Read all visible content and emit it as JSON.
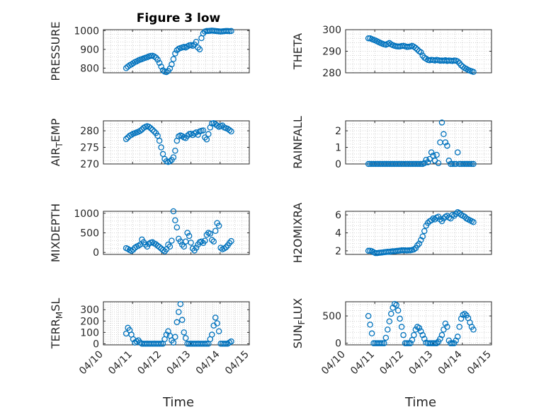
{
  "title": "Figure 3 low",
  "xlabel": "Time",
  "x_tick_labels": [
    "04/10",
    "04/11",
    "04/12",
    "04/13",
    "04/14",
    "04/15"
  ],
  "marker_color": "#0072BD",
  "chart_data": [
    {
      "type": "scatter",
      "title": "Figure 3 low",
      "ylabel": "PRESSURE",
      "ylim": [
        775,
        1005
      ],
      "yticks": [
        800,
        900,
        1000
      ],
      "grid": true,
      "x": [
        0.78,
        0.84,
        0.9,
        0.96,
        1.02,
        1.08,
        1.14,
        1.2,
        1.26,
        1.32,
        1.38,
        1.44,
        1.5,
        1.56,
        1.62,
        1.68,
        1.74,
        1.8,
        1.86,
        1.92,
        1.98,
        2.04,
        2.1,
        2.16,
        2.22,
        2.28,
        2.34,
        2.4,
        2.46,
        2.52,
        2.58,
        2.64,
        2.7,
        2.76,
        2.82,
        2.88,
        2.94,
        3.0,
        3.06,
        3.12,
        3.18,
        3.24,
        3.3,
        3.36,
        3.42,
        3.48,
        3.54,
        3.6,
        3.66,
        3.72,
        3.78,
        3.84,
        3.9,
        3.96,
        4.02,
        4.08,
        4.14,
        4.2,
        4.26,
        4.32,
        4.38
      ],
      "y": [
        800,
        808,
        815,
        820,
        826,
        832,
        836,
        841,
        845,
        848,
        852,
        855,
        858,
        862,
        865,
        866,
        862,
        856,
        845,
        828,
        808,
        788,
        781,
        779,
        785,
        798,
        820,
        848,
        878,
        895,
        903,
        907,
        910,
        913,
        910,
        916,
        921,
        923,
        919,
        926,
        940,
        910,
        900,
        960,
        985,
        995,
        998,
        998,
        999,
        1000,
        999,
        998,
        997,
        996,
        995,
        996,
        997,
        998,
        998,
        997,
        998
      ]
    },
    {
      "type": "scatter",
      "ylabel": "THETA",
      "ylim": [
        280,
        300
      ],
      "yticks": [
        280,
        290,
        300
      ],
      "grid": true,
      "x": [
        0.78,
        0.84,
        0.9,
        0.96,
        1.02,
        1.08,
        1.14,
        1.2,
        1.26,
        1.32,
        1.38,
        1.44,
        1.5,
        1.56,
        1.62,
        1.68,
        1.74,
        1.8,
        1.86,
        1.92,
        1.98,
        2.04,
        2.1,
        2.16,
        2.22,
        2.28,
        2.34,
        2.4,
        2.46,
        2.52,
        2.58,
        2.64,
        2.7,
        2.76,
        2.82,
        2.88,
        2.94,
        3.0,
        3.06,
        3.12,
        3.18,
        3.24,
        3.3,
        3.36,
        3.42,
        3.48,
        3.54,
        3.6,
        3.66,
        3.72,
        3.78,
        3.84,
        3.9,
        3.96,
        4.02,
        4.08,
        4.14,
        4.2,
        4.26,
        4.32,
        4.38
      ],
      "y": [
        296,
        296,
        295.6,
        295.3,
        295,
        294.6,
        294.2,
        293.8,
        293.5,
        293.2,
        293,
        293.4,
        293.8,
        293.2,
        292.8,
        292.5,
        292.3,
        292.2,
        292.2,
        292.4,
        292.5,
        292.3,
        292,
        292.1,
        292.2,
        292.5,
        292.1,
        291.5,
        290.8,
        290,
        289.5,
        288,
        287,
        286.5,
        286,
        285.8,
        286,
        285.9,
        285.7,
        286,
        285.8,
        285.6,
        285.7,
        285.6,
        285.8,
        285.5,
        285.7,
        285.6,
        285.5,
        285.7,
        285.6,
        285.3,
        284.5,
        283.5,
        282.8,
        282.2,
        281.8,
        281.3,
        281,
        280.7,
        280.4
      ]
    },
    {
      "type": "scatter",
      "ylabel": "AIR_TEMP",
      "ylim": [
        270,
        283
      ],
      "yticks": [
        270,
        275,
        280
      ],
      "grid": true,
      "x": [
        0.78,
        0.84,
        0.9,
        0.96,
        1.02,
        1.08,
        1.14,
        1.2,
        1.26,
        1.32,
        1.38,
        1.44,
        1.5,
        1.56,
        1.62,
        1.68,
        1.74,
        1.8,
        1.86,
        1.92,
        1.98,
        2.04,
        2.1,
        2.16,
        2.22,
        2.28,
        2.34,
        2.4,
        2.46,
        2.52,
        2.58,
        2.64,
        2.7,
        2.76,
        2.82,
        2.88,
        2.94,
        3.0,
        3.06,
        3.12,
        3.18,
        3.24,
        3.3,
        3.36,
        3.42,
        3.48,
        3.54,
        3.6,
        3.66,
        3.72,
        3.78,
        3.84,
        3.9,
        3.96,
        4.02,
        4.08,
        4.14,
        4.2,
        4.26,
        4.32,
        4.38
      ],
      "y": [
        277.5,
        278,
        278.5,
        278.8,
        279.1,
        279.3,
        279.5,
        279.7,
        280,
        280.4,
        280.9,
        281.2,
        281.4,
        281.2,
        280.8,
        280.3,
        279.8,
        279.3,
        278.5,
        277,
        275,
        273,
        271.5,
        270.8,
        270.6,
        270.8,
        271.2,
        272,
        274,
        277,
        278.3,
        278.6,
        278.4,
        278,
        277.8,
        278.5,
        279,
        279.1,
        278.7,
        279.2,
        279.5,
        278.8,
        279.8,
        280,
        280.1,
        278,
        277.4,
        279,
        281,
        282.2,
        282.3,
        282,
        281.6,
        281.2,
        281.4,
        281.6,
        281,
        280.8,
        280.6,
        280.2,
        279.8
      ]
    },
    {
      "type": "scatter",
      "ylabel": "RAINFALL",
      "ylim": [
        0,
        2.6
      ],
      "yticks": [
        0,
        1,
        2
      ],
      "grid": true,
      "x": [
        0.78,
        0.84,
        0.9,
        0.96,
        1.02,
        1.08,
        1.14,
        1.2,
        1.26,
        1.32,
        1.38,
        1.44,
        1.5,
        1.56,
        1.62,
        1.68,
        1.74,
        1.8,
        1.86,
        1.92,
        1.98,
        2.04,
        2.1,
        2.16,
        2.22,
        2.28,
        2.34,
        2.4,
        2.46,
        2.52,
        2.58,
        2.64,
        2.7,
        2.76,
        2.82,
        2.88,
        2.94,
        3.0,
        3.06,
        3.12,
        3.18,
        3.24,
        3.3,
        3.36,
        3.42,
        3.48,
        3.54,
        3.6,
        3.66,
        3.72,
        3.78,
        3.84,
        3.9,
        3.96,
        4.02,
        4.08,
        4.14,
        4.2,
        4.26,
        4.32,
        4.38
      ],
      "y": [
        0,
        0,
        0,
        0,
        0,
        0,
        0,
        0,
        0,
        0,
        0,
        0,
        0,
        0,
        0,
        0,
        0,
        0,
        0,
        0,
        0,
        0,
        0,
        0,
        0,
        0,
        0,
        0,
        0,
        0,
        0,
        0,
        0.05,
        0.25,
        0.1,
        0.3,
        0.7,
        0.5,
        0.2,
        0.55,
        0.05,
        1.3,
        2.5,
        1.8,
        1.3,
        1.1,
        0.2,
        0,
        0,
        0,
        0,
        0.7,
        0,
        0,
        0,
        0,
        0,
        0,
        0,
        0,
        0
      ]
    },
    {
      "type": "scatter",
      "ylabel": "MIXDEPTH",
      "ylim": [
        -50,
        1050
      ],
      "yticks": [
        0,
        500,
        1000
      ],
      "grid": true,
      "x": [
        0.78,
        0.84,
        0.9,
        0.96,
        1.02,
        1.08,
        1.14,
        1.2,
        1.26,
        1.32,
        1.38,
        1.44,
        1.5,
        1.56,
        1.62,
        1.68,
        1.74,
        1.8,
        1.86,
        1.92,
        1.98,
        2.04,
        2.1,
        2.16,
        2.22,
        2.28,
        2.34,
        2.4,
        2.46,
        2.52,
        2.58,
        2.64,
        2.7,
        2.76,
        2.82,
        2.88,
        2.94,
        3.0,
        3.06,
        3.12,
        3.18,
        3.24,
        3.3,
        3.36,
        3.42,
        3.48,
        3.54,
        3.6,
        3.66,
        3.72,
        3.78,
        3.84,
        3.9,
        3.96,
        4.02,
        4.08,
        4.14,
        4.2,
        4.26,
        4.32,
        4.38
      ],
      "y": [
        110,
        90,
        60,
        40,
        70,
        120,
        150,
        170,
        200,
        330,
        260,
        200,
        150,
        220,
        250,
        260,
        230,
        210,
        170,
        140,
        100,
        60,
        30,
        80,
        200,
        150,
        300,
        1050,
        820,
        640,
        350,
        280,
        200,
        150,
        280,
        500,
        420,
        250,
        100,
        50,
        120,
        200,
        260,
        280,
        240,
        300,
        450,
        500,
        480,
        320,
        280,
        550,
        750,
        680,
        120,
        80,
        100,
        130,
        180,
        240,
        290
      ]
    },
    {
      "type": "scatter",
      "ylabel": "H2OMIXRA",
      "ylim": [
        1.6,
        6.4
      ],
      "yticks": [
        2,
        4,
        6
      ],
      "grid": true,
      "x": [
        0.78,
        0.84,
        0.9,
        0.96,
        1.02,
        1.08,
        1.14,
        1.2,
        1.26,
        1.32,
        1.38,
        1.44,
        1.5,
        1.56,
        1.62,
        1.68,
        1.74,
        1.8,
        1.86,
        1.92,
        1.98,
        2.04,
        2.1,
        2.16,
        2.22,
        2.28,
        2.34,
        2.4,
        2.46,
        2.52,
        2.58,
        2.64,
        2.7,
        2.76,
        2.82,
        2.88,
        2.94,
        3.0,
        3.06,
        3.12,
        3.18,
        3.24,
        3.3,
        3.36,
        3.42,
        3.48,
        3.54,
        3.6,
        3.66,
        3.72,
        3.78,
        3.84,
        3.9,
        3.96,
        4.02,
        4.08,
        4.14,
        4.2,
        4.26,
        4.32,
        4.38
      ],
      "y": [
        2.0,
        2.0,
        1.95,
        1.85,
        1.75,
        1.75,
        1.78,
        1.8,
        1.82,
        1.85,
        1.87,
        1.9,
        1.9,
        1.92,
        1.95,
        1.95,
        1.98,
        2.0,
        2.02,
        2.05,
        2.05,
        2.05,
        2.03,
        2.05,
        2.05,
        2.1,
        2.15,
        2.3,
        2.6,
        2.8,
        3.2,
        3.6,
        4.2,
        4.8,
        5.1,
        5.3,
        5.4,
        5.6,
        5.5,
        5.7,
        5.8,
        5.5,
        5.3,
        5.6,
        5.8,
        5.9,
        5.7,
        5.6,
        6.0,
        5.9,
        6.1,
        6.3,
        6.2,
        6.0,
        5.9,
        5.8,
        5.6,
        5.5,
        5.4,
        5.3,
        5.2
      ]
    },
    {
      "type": "scatter",
      "ylabel": "TERR_MSL",
      "ylim": [
        -10,
        370
      ],
      "yticks": [
        0,
        100,
        200,
        300
      ],
      "grid": true,
      "x": [
        0.78,
        0.84,
        0.9,
        0.96,
        1.02,
        1.08,
        1.14,
        1.2,
        1.26,
        1.32,
        1.38,
        1.44,
        1.5,
        1.56,
        1.62,
        1.68,
        1.74,
        1.8,
        1.86,
        1.92,
        1.98,
        2.04,
        2.1,
        2.16,
        2.22,
        2.28,
        2.34,
        2.4,
        2.46,
        2.52,
        2.58,
        2.64,
        2.7,
        2.76,
        2.82,
        2.88,
        2.94,
        3.0,
        3.06,
        3.12,
        3.18,
        3.24,
        3.3,
        3.36,
        3.42,
        3.48,
        3.54,
        3.6,
        3.66,
        3.72,
        3.78,
        3.84,
        3.9,
        3.96,
        4.02,
        4.08,
        4.14,
        4.2,
        4.26,
        4.32,
        4.38
      ],
      "y": [
        90,
        140,
        120,
        80,
        40,
        10,
        20,
        30,
        10,
        0,
        0,
        0,
        0,
        0,
        0,
        0,
        0,
        0,
        0,
        0,
        0,
        0,
        40,
        80,
        110,
        70,
        30,
        10,
        60,
        190,
        280,
        350,
        210,
        100,
        50,
        0,
        0,
        0,
        0,
        0,
        0,
        0,
        0,
        0,
        0,
        0,
        0,
        0,
        40,
        80,
        160,
        230,
        180,
        110,
        0,
        0,
        0,
        0,
        0,
        10,
        20
      ]
    },
    {
      "type": "scatter",
      "ylabel": "SUN_FLUX",
      "ylim": [
        -30,
        760
      ],
      "yticks": [
        0,
        500
      ],
      "grid": true,
      "x": [
        0.78,
        0.84,
        0.9,
        0.96,
        1.02,
        1.08,
        1.14,
        1.2,
        1.26,
        1.32,
        1.38,
        1.44,
        1.5,
        1.56,
        1.62,
        1.68,
        1.74,
        1.8,
        1.86,
        1.92,
        1.98,
        2.04,
        2.1,
        2.16,
        2.22,
        2.28,
        2.34,
        2.4,
        2.46,
        2.52,
        2.58,
        2.64,
        2.7,
        2.76,
        2.82,
        2.88,
        2.94,
        3.0,
        3.06,
        3.12,
        3.18,
        3.24,
        3.3,
        3.36,
        3.42,
        3.48,
        3.54,
        3.6,
        3.66,
        3.72,
        3.78,
        3.84,
        3.9,
        3.96,
        4.02,
        4.08,
        4.14,
        4.2,
        4.26,
        4.32,
        4.38
      ],
      "y": [
        500,
        340,
        180,
        0,
        0,
        0,
        0,
        0,
        0,
        0,
        100,
        250,
        400,
        540,
        650,
        720,
        700,
        600,
        450,
        300,
        150,
        0,
        0,
        0,
        0,
        60,
        150,
        250,
        300,
        280,
        220,
        150,
        80,
        10,
        0,
        0,
        0,
        0,
        0,
        0,
        30,
        80,
        150,
        250,
        360,
        300,
        50,
        0,
        0,
        0,
        50,
        120,
        300,
        450,
        520,
        540,
        510,
        460,
        380,
        300,
        250
      ]
    }
  ]
}
